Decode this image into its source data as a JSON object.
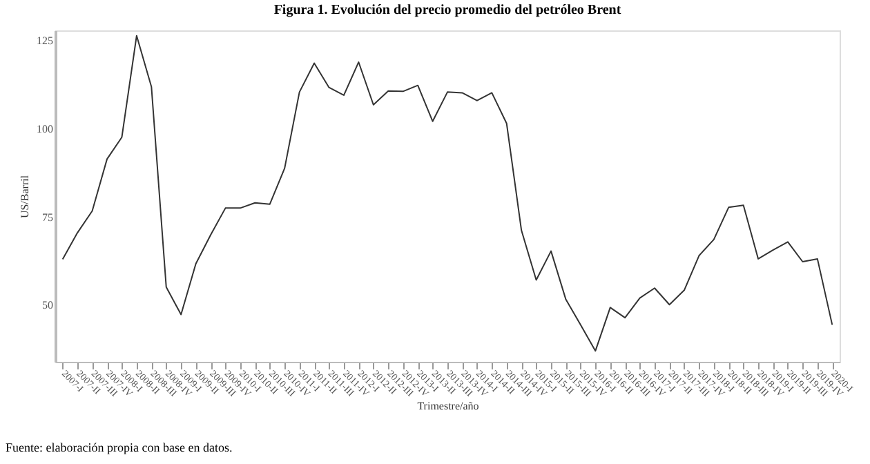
{
  "chart_data": {
    "type": "line",
    "title": "Figura 1. Evolución del precio promedio del petróleo Brent",
    "xlabel": "Trimestre/año",
    "ylabel": "US/Barril",
    "categories": [
      "2007-I",
      "2007-II",
      "2007-III",
      "2007-IV",
      "2008-I",
      "2008-II",
      "2008-III",
      "2008-IV",
      "2009-I",
      "2009-II",
      "2009-III",
      "2009-IV",
      "2010-I",
      "2010-II",
      "2010-III",
      "2010-IV",
      "2011-I",
      "2011-II",
      "2011-III",
      "2011-IV",
      "2012-I",
      "2012-II",
      "2012-III",
      "2012-IV",
      "2013-I",
      "2013-II",
      "2013-III",
      "2013-IV",
      "2014-I",
      "2014-II",
      "2014-III",
      "2014-IV",
      "2015-I",
      "2015-II",
      "2015-III",
      "2015-IV",
      "2016-I",
      "2016-II",
      "2016-III",
      "2016-IV",
      "2017-I",
      "2017-II",
      "2017-III",
      "2017-IV",
      "2018-I",
      "2018-II",
      "2018-III",
      "2018-IV",
      "2019-I",
      "2019-II",
      "2019-III",
      "2019-IV",
      "2020-I"
    ],
    "series": [
      {
        "color": "#333333",
        "values": [
          63.1,
          70.6,
          76.8,
          91.5,
          97.7,
          126.5,
          112,
          55.2,
          47.4,
          61.8,
          70,
          77.6,
          77.6,
          79.1,
          78.7,
          88.9,
          110.5,
          118.7,
          111.8,
          109.6,
          119,
          106.9,
          110.8,
          110.7,
          112.4,
          102.2,
          110.5,
          110.3,
          108.1,
          110.3,
          101.6,
          71.3,
          57.2,
          65.4,
          51.7,
          44.5,
          37.1,
          49.4,
          46.5,
          52.1,
          54.9,
          50.2,
          54.3,
          64.1,
          68.7,
          77.8,
          78.4,
          63.2,
          65.7,
          68,
          62.4,
          63.2,
          44.5
        ]
      }
    ],
    "ylim": [
      34,
      128
    ],
    "yticks": [
      50,
      75,
      100,
      125
    ],
    "grid": false,
    "legend": false,
    "annotations": [
      "Fuente: elaboración propia con base en datos."
    ]
  }
}
